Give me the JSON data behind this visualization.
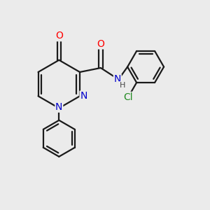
{
  "background_color": "#ebebeb",
  "line_color": "#1a1a1a",
  "bond_width": 1.6,
  "atom_colors": {
    "O": "#ff0000",
    "N": "#0000cc",
    "Cl": "#228b22",
    "C": "#1a1a1a",
    "H": "#555555"
  },
  "font_size_atom": 10,
  "font_size_small": 9
}
